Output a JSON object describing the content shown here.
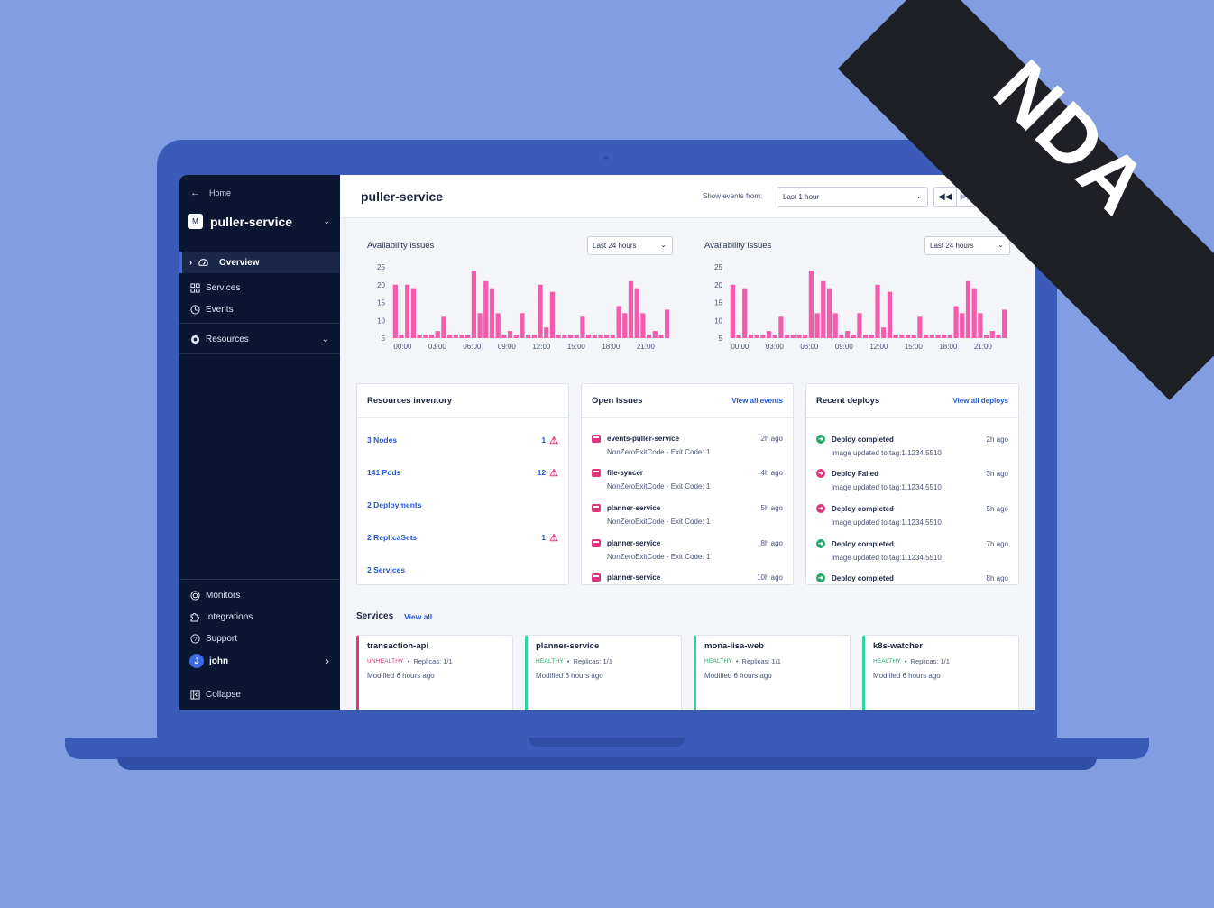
{
  "sidebar": {
    "home_label": "Home",
    "app_badge": "M",
    "app_name": "puller-service",
    "items": [
      {
        "label": "Overview"
      },
      {
        "label": "Services"
      },
      {
        "label": "Events"
      },
      {
        "label": "Resources"
      }
    ],
    "bottom": [
      {
        "label": "Monitors"
      },
      {
        "label": "Integrations"
      },
      {
        "label": "Support"
      }
    ],
    "user_initial": "J",
    "user_name": "john",
    "collapse_label": "Collapse"
  },
  "header": {
    "title": "puller-service",
    "show_events_label": "Show events from:",
    "time_range": "Last 1 hour"
  },
  "charts": [
    {
      "title": "Availability issues",
      "range": "Last 24 hours"
    },
    {
      "title": "Availability issues",
      "range": "Last 24 hours"
    }
  ],
  "chart_data": [
    {
      "type": "bar",
      "title": "Availability issues",
      "color": "#f45bac",
      "ylim": [
        5,
        25
      ],
      "yticks": [
        5,
        10,
        15,
        20,
        25
      ],
      "xticks": [
        "00:00",
        "03:00",
        "06:00",
        "09:00",
        "12:00",
        "15:00",
        "18:00",
        "21:00"
      ],
      "values": [
        20,
        6,
        20,
        19,
        6,
        6,
        6,
        7,
        11,
        6,
        6,
        6,
        6,
        24,
        12,
        21,
        19,
        12,
        6,
        7,
        6,
        12,
        6,
        6,
        20,
        8,
        18,
        6,
        6,
        6,
        6,
        11,
        6,
        6,
        6,
        6,
        6,
        14,
        12,
        21,
        19,
        12,
        6,
        7,
        6,
        13
      ]
    },
    {
      "type": "bar",
      "title": "Availability issues",
      "color": "#f45bac",
      "ylim": [
        5,
        25
      ],
      "yticks": [
        5,
        10,
        15,
        20,
        25
      ],
      "xticks": [
        "00:00",
        "03:00",
        "06:00",
        "09:00",
        "12:00",
        "15:00",
        "18:00",
        "21:00"
      ],
      "values": [
        20,
        6,
        19,
        6,
        6,
        6,
        7,
        6,
        11,
        6,
        6,
        6,
        6,
        24,
        12,
        21,
        19,
        12,
        6,
        7,
        6,
        12,
        6,
        6,
        20,
        8,
        18,
        6,
        6,
        6,
        6,
        11,
        6,
        6,
        6,
        6,
        6,
        14,
        12,
        21,
        19,
        12,
        6,
        7,
        6,
        13
      ]
    }
  ],
  "inventory": {
    "title": "Resources inventory",
    "rows": [
      {
        "label": "3 Nodes",
        "count": "1"
      },
      {
        "label": "141 Pods",
        "count": "12"
      },
      {
        "label": "2 Deployments",
        "count": ""
      },
      {
        "label": "2 ReplicaSets",
        "count": "1"
      },
      {
        "label": "2 Services",
        "count": ""
      }
    ]
  },
  "issues": {
    "title": "Open Issues",
    "link": "View all events",
    "items": [
      {
        "name": "events-puller-service",
        "time": "2h ago",
        "detail": "NonZeroExitCode - Exit Code: 1"
      },
      {
        "name": "file-syncer",
        "time": "4h ago",
        "detail": "NonZeroExitCode - Exit Code: 1"
      },
      {
        "name": "planner-service",
        "time": "5h ago",
        "detail": "NonZeroExitCode - Exit Code: 1"
      },
      {
        "name": "planner-service",
        "time": "8h ago",
        "detail": "NonZeroExitCode - Exit Code: 1"
      },
      {
        "name": "planner-service",
        "time": "10h ago",
        "detail": ""
      }
    ]
  },
  "deploys": {
    "title": "Recent deploys",
    "link": "View all deploys",
    "items": [
      {
        "status": "Deploy completed",
        "time": "2h ago",
        "detail": "image updated to tag:1.1234.5510",
        "color": "#22a86b"
      },
      {
        "status": "Deploy Failed",
        "time": "3h ago",
        "detail": "image updated to tag:1.1234.5510",
        "color": "#e0337d"
      },
      {
        "status": "Deploy completed",
        "time": "5h ago",
        "detail": "image updated to tag:1.1234.5510",
        "color": "#e0337d"
      },
      {
        "status": "Deploy completed",
        "time": "7h ago",
        "detail": "image updated to tag:1.1234.5510",
        "color": "#22a86b"
      },
      {
        "status": "Deploy completed",
        "time": "8h ago",
        "detail": "",
        "color": "#22a86b"
      }
    ]
  },
  "services": {
    "title": "Services",
    "link": "View all",
    "items": [
      {
        "name": "transaction-api",
        "status": "UNHEALTHY",
        "replicas": "Replicas: 1/1",
        "modified": "Modified 6 hours ago",
        "color": "#e0337d"
      },
      {
        "name": "planner-service",
        "status": "HEALTHY",
        "replicas": "Replicas: 1/1",
        "modified": "Modified 6 hours ago",
        "color": "#2fd3a0"
      },
      {
        "name": "mona-lisa-web",
        "status": "HEALTHY",
        "replicas": "Replicas: 1/1",
        "modified": "Modified 6 hours ago",
        "color": "#2fd3a0"
      },
      {
        "name": "k8s-watcher",
        "status": "HEALTHY",
        "replicas": "Replicas: 1/1",
        "modified": "Modified 6 hours ago",
        "color": "#2fd3a0"
      }
    ]
  },
  "ribbon_text": "NDA"
}
